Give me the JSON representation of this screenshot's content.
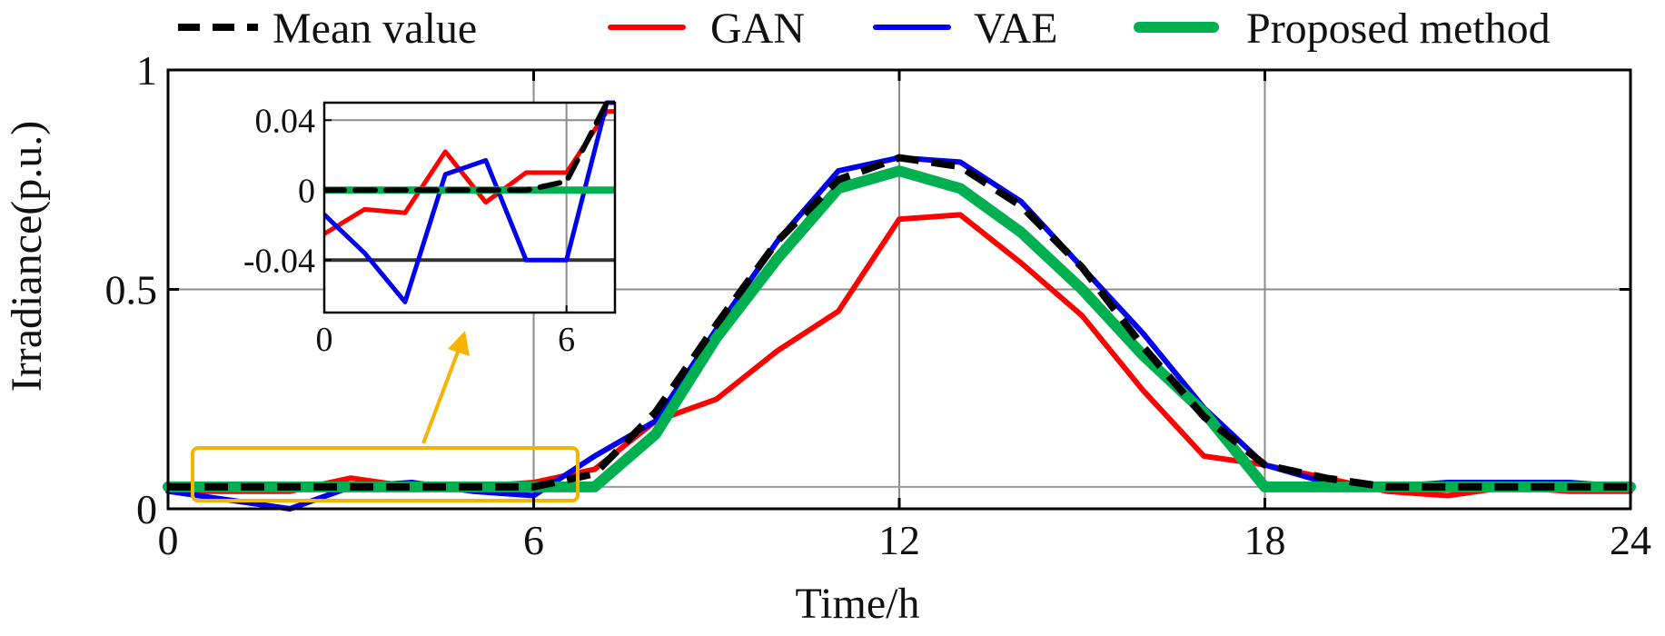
{
  "chart_data": {
    "type": "line",
    "xlabel": "Time/h",
    "ylabel": "Irradiance(p.u.)",
    "xlim": [
      0,
      24
    ],
    "ylim": [
      0,
      1
    ],
    "x_ticks": [
      "0",
      "6",
      "12",
      "18",
      "24"
    ],
    "y_ticks": [
      "0",
      "0.5",
      "1"
    ],
    "grid": true,
    "x": [
      0,
      1,
      2,
      3,
      4,
      5,
      6,
      7,
      8,
      9,
      10,
      11,
      12,
      13,
      14,
      15,
      16,
      17,
      18,
      19,
      20,
      21,
      22,
      23,
      24
    ],
    "series": [
      {
        "name": "Mean value",
        "color": "#000000",
        "style": "dashed",
        "values": [
          0.05,
          0.05,
          0.05,
          0.05,
          0.05,
          0.05,
          0.05,
          0.08,
          0.22,
          0.42,
          0.61,
          0.75,
          0.8,
          0.78,
          0.69,
          0.55,
          0.37,
          0.21,
          0.1,
          0.07,
          0.05,
          0.05,
          0.05,
          0.05,
          0.05
        ]
      },
      {
        "name": "GAN",
        "color": "#ff0000",
        "style": "solid",
        "values": [
          0.04,
          0.04,
          0.04,
          0.07,
          0.05,
          0.05,
          0.06,
          0.09,
          0.2,
          0.25,
          0.36,
          0.45,
          0.66,
          0.67,
          0.56,
          0.44,
          0.27,
          0.12,
          0.1,
          0.07,
          0.04,
          0.03,
          0.05,
          0.04,
          0.04
        ]
      },
      {
        "name": "VAE",
        "color": "#0000ee",
        "style": "solid",
        "values": [
          0.04,
          0.02,
          0.0,
          0.05,
          0.06,
          0.04,
          0.03,
          0.12,
          0.2,
          0.41,
          0.61,
          0.77,
          0.8,
          0.79,
          0.7,
          0.55,
          0.4,
          0.23,
          0.1,
          0.06,
          0.05,
          0.06,
          0.06,
          0.06,
          0.05
        ]
      },
      {
        "name": "Proposed method",
        "color": "#00b050",
        "style": "solid",
        "values": [
          0.05,
          0.05,
          0.05,
          0.05,
          0.05,
          0.05,
          0.05,
          0.05,
          0.17,
          0.39,
          0.57,
          0.73,
          0.77,
          0.73,
          0.63,
          0.5,
          0.35,
          0.22,
          0.05,
          0.05,
          0.05,
          0.05,
          0.05,
          0.05,
          0.05
        ]
      }
    ],
    "inset": {
      "xlim": [
        0,
        7.2
      ],
      "ylim": [
        -0.07,
        0.05
      ],
      "x_ticks": [
        "0",
        "6"
      ],
      "y_ticks": [
        "0.04",
        "0",
        "-0.04"
      ],
      "grid": true,
      "x": [
        0,
        1,
        2,
        3,
        4,
        5,
        6,
        7,
        7.2
      ],
      "series": [
        {
          "name": "Mean value",
          "color": "#000000",
          "style": "dashed",
          "values": [
            0,
            0,
            0,
            0,
            0,
            0,
            0.005,
            0.05,
            0.05
          ]
        },
        {
          "name": "GAN",
          "color": "#ff0000",
          "style": "solid",
          "values": [
            -0.025,
            -0.011,
            -0.013,
            0.022,
            -0.007,
            0.01,
            0.01,
            0.045,
            0.045
          ]
        },
        {
          "name": "VAE",
          "color": "#0000ee",
          "style": "solid",
          "values": [
            -0.014,
            -0.036,
            -0.064,
            0.009,
            0.017,
            -0.04,
            -0.04,
            0.05,
            0.05
          ]
        },
        {
          "name": "Proposed method",
          "color": "#00b050",
          "style": "solid",
          "values": [
            0,
            0,
            0,
            0,
            0,
            0,
            0,
            0,
            0
          ]
        }
      ]
    }
  }
}
